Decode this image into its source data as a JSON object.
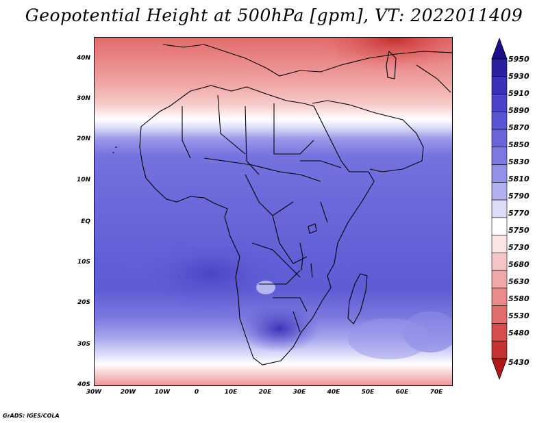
{
  "title": "Geopotential Height at 500hPa [gpm], VT: 2022011409",
  "footer": "GrADS: IGES/COLA",
  "map": {
    "region": "Africa",
    "lon_range": [
      "30W",
      "75E"
    ],
    "lat_range": [
      "40S",
      "45N"
    ],
    "lat_labels": [
      "40N",
      "30N",
      "20N",
      "10N",
      "EQ",
      "10S",
      "20S",
      "30S",
      "40S"
    ],
    "lon_labels": [
      "30W",
      "20W",
      "10W",
      "0",
      "10E",
      "20E",
      "30E",
      "40E",
      "50E",
      "60E",
      "70E"
    ]
  },
  "colorbar": {
    "labels": [
      "5950",
      "5930",
      "5910",
      "5890",
      "5870",
      "5850",
      "5830",
      "5810",
      "5790",
      "5770",
      "5750",
      "5730",
      "5680",
      "5630",
      "5580",
      "5530",
      "5480",
      "5430"
    ],
    "top_arrow_color": "#1a0f8a",
    "bottom_arrow_color": "#b01818",
    "colors": [
      "#2b1fa0",
      "#3a30b8",
      "#4a42c8",
      "#5a55d2",
      "#6a66da",
      "#7c7ae2",
      "#9290e8",
      "#b0b0f0",
      "#dcdcf8",
      "#ffffff",
      "#fbe4e4",
      "#f6c6c6",
      "#f0a8a8",
      "#ea8a8a",
      "#e06c6c",
      "#d44e4e",
      "#c63232"
    ]
  }
}
